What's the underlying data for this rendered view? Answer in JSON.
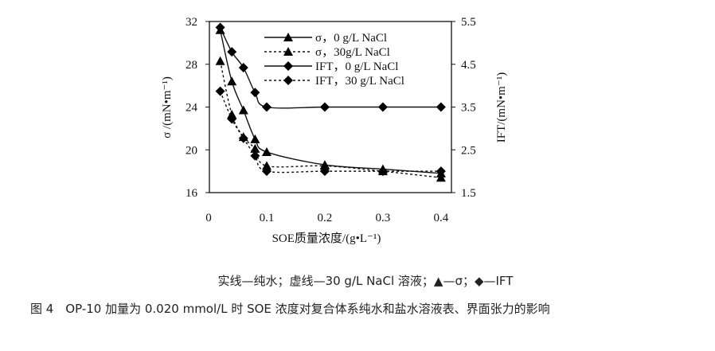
{
  "chart_data": {
    "type": "line",
    "xlabel": "SOE质量浓度/(g•L⁻¹)",
    "ylabel": "σ /(mN•m⁻¹)",
    "y2label": "IFT/(mN•m⁻¹)",
    "xlim": [
      0,
      0.418
    ],
    "ylim": [
      16,
      32
    ],
    "y2lim": [
      1.5,
      5.5
    ],
    "xticks": [
      "0",
      "0.1",
      "0.2",
      "0.3",
      "0.4"
    ],
    "xtick_values": [
      0,
      0.1,
      0.2,
      0.3,
      0.4
    ],
    "yticks": [
      "16",
      "20",
      "24",
      "28",
      "32"
    ],
    "ytick_values": [
      16,
      20,
      24,
      28,
      32
    ],
    "y2ticks": [
      "1.5",
      "2.5",
      "3.5",
      "4.5",
      "5.5"
    ],
    "y2tick_values": [
      1.5,
      2.5,
      3.5,
      4.5,
      5.5
    ],
    "grid": false,
    "legend_position": "top-center",
    "x": [
      0.02,
      0.04,
      0.06,
      0.08,
      0.1,
      0.2,
      0.3,
      0.4
    ],
    "series": [
      {
        "name": "σ，0 g/L NaCl",
        "axis": "left",
        "marker": "triangle",
        "line": "solid",
        "values": [
          31.2,
          26.4,
          23.7,
          21.0,
          19.8,
          18.6,
          18.2,
          17.8
        ]
      },
      {
        "name": "σ，30g/L NaCl",
        "axis": "left",
        "marker": "triangle",
        "line": "dotted",
        "values": [
          28.3,
          23.3,
          21.2,
          20.1,
          18.5,
          18.5,
          18.0,
          17.4
        ]
      },
      {
        "name": "IFT，0 g/L NaCl",
        "axis": "right",
        "marker": "diamond",
        "line": "solid",
        "values": [
          5.36,
          4.79,
          4.42,
          3.84,
          3.5,
          3.5,
          3.5,
          3.5
        ]
      },
      {
        "name": "IFT，30 g/L NaCl",
        "axis": "right",
        "marker": "diamond",
        "line": "dotted",
        "values": [
          3.87,
          3.22,
          2.77,
          2.36,
          2.0,
          2.0,
          2.0,
          2.0
        ]
      }
    ]
  },
  "note": "实线—纯水；虚线—30 g/L NaCl 溶液；▲—σ；◆—IFT",
  "caption": "图 4　OP-10 加量为 0.020 mmol/L 时 SOE 浓度对复合体系纯水和盐水溶液表、界面张力的影响"
}
